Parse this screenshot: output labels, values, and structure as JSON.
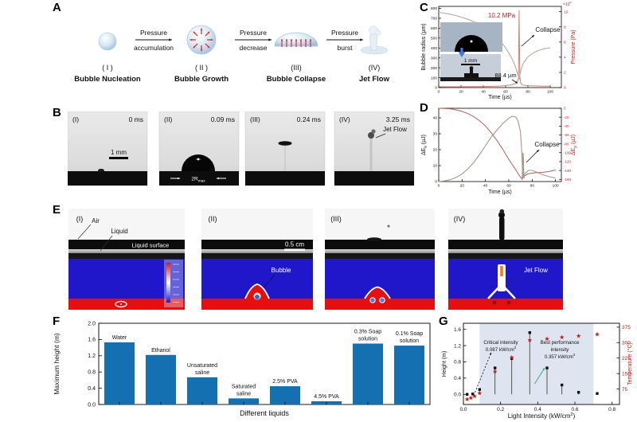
{
  "panel_a": {
    "label": "A",
    "stages": [
      {
        "numeral": "( I )",
        "name": "Bubble Nucleation"
      },
      {
        "numeral": "( II )",
        "name": "Bubble Growth"
      },
      {
        "numeral": "(III)",
        "name": "Bubble Collapse"
      },
      {
        "numeral": "(IV)",
        "name": "Jet Flow"
      }
    ],
    "transitions": [
      {
        "line1": "Pressure",
        "line2": "accumulation"
      },
      {
        "line1": "Pressure",
        "line2": "decrease"
      },
      {
        "line1": "Pressure",
        "line2": "burst"
      }
    ]
  },
  "panel_b": {
    "label": "B",
    "frames": [
      {
        "numeral": "(I)",
        "time": "0 ms",
        "scale_bar": "1 mm"
      },
      {
        "numeral": "(II)",
        "time": "0.09 ms",
        "diameter_label": "2R_max"
      },
      {
        "numeral": "(III)",
        "time": "0.24 ms"
      },
      {
        "numeral": "(IV)",
        "time": "3.25 ms",
        "jet_label": "Jet Flow"
      }
    ]
  },
  "panel_e": {
    "label": "E",
    "frames": [
      {
        "numeral": "(I)",
        "air_label": "Air",
        "liquid_label": "Liquid",
        "surface_label": "Liquid surface"
      },
      {
        "numeral": "(II)",
        "scale_bar": "0.5 cm",
        "bubble_label": "Bubble"
      },
      {
        "numeral": "(III)"
      },
      {
        "numeral": "(IV)",
        "jet_label": "Jet Flow"
      }
    ]
  },
  "chart_data": [
    {
      "id": "C",
      "panel_label": "C",
      "type": "line",
      "xlabel": "Time (µs)",
      "ylabel": "Bubble radius (µm)",
      "y2label": "Pressure (Pa)",
      "y2_scale_note": "×10^6",
      "xlim": [
        0,
        110
      ],
      "ylim": [
        0,
        820
      ],
      "y2lim": [
        0,
        10.7
      ],
      "xticks": [
        0,
        20,
        40,
        60,
        80,
        100
      ],
      "yticks": [
        0,
        100,
        200,
        300,
        400,
        500,
        600,
        700,
        800
      ],
      "y2ticks": [
        0,
        2,
        4,
        6,
        8,
        10
      ],
      "annotations": {
        "peak_pressure": "10.2 MPa",
        "collapse": "Collapse",
        "min_radius": "88.4 µm",
        "inset_scale": "1 mm"
      },
      "series": [
        {
          "name": "bubble radius",
          "axis": "left",
          "color": "#b3aba0",
          "points": [
            [
              0,
              760
            ],
            [
              5,
              752
            ],
            [
              10,
              741
            ],
            [
              15,
              728
            ],
            [
              20,
              712
            ],
            [
              25,
              694
            ],
            [
              30,
              672
            ],
            [
              35,
              646
            ],
            [
              40,
              615
            ],
            [
              45,
              578
            ],
            [
              50,
              532
            ],
            [
              55,
              474
            ],
            [
              60,
              400
            ],
            [
              64,
              330
            ],
            [
              67,
              262
            ],
            [
              69,
              205
            ],
            [
              70.5,
              150
            ],
            [
              71.8,
              95
            ],
            [
              72.2,
              88.4
            ],
            [
              72.8,
              130
            ],
            [
              74,
              190
            ],
            [
              76,
              248
            ],
            [
              80,
              310
            ],
            [
              85,
              352
            ],
            [
              90,
              378
            ],
            [
              95,
              393
            ],
            [
              100,
              402
            ]
          ]
        },
        {
          "name": "pressure",
          "axis": "right",
          "color": "#d08273",
          "points": [
            [
              0,
              0.1
            ],
            [
              20,
              0.12
            ],
            [
              40,
              0.15
            ],
            [
              55,
              0.2
            ],
            [
              65,
              0.35
            ],
            [
              70,
              0.6
            ],
            [
              71.5,
              1.2
            ],
            [
              72.1,
              10.2
            ],
            [
              72.7,
              1.5
            ],
            [
              73.5,
              0.6
            ],
            [
              75,
              0.35
            ],
            [
              80,
              0.25
            ],
            [
              90,
              0.2
            ],
            [
              100,
              0.18
            ]
          ]
        }
      ]
    },
    {
      "id": "D",
      "panel_label": "D",
      "type": "line",
      "xlabel": "Time (µs)",
      "ylabel": "ΔE_k (µJ)",
      "y2label": "ΔE_p (µJ)",
      "xlim": [
        0,
        105
      ],
      "ylim": [
        0,
        46
      ],
      "y2lim": [
        -165,
        0
      ],
      "xticks": [
        0,
        20,
        40,
        60,
        80,
        100
      ],
      "yticks": [
        0,
        10,
        20,
        30,
        40
      ],
      "y2ticks": [
        0,
        -20,
        -40,
        -60,
        -80,
        -100,
        -120,
        -140,
        -160
      ],
      "annotations": {
        "collapse": "Collapse"
      },
      "series": [
        {
          "name": "kinetic energy ΔE_k",
          "axis": "left",
          "color": "#a39a8e",
          "points": [
            [
              0,
              0
            ],
            [
              5,
              0.4
            ],
            [
              10,
              1.2
            ],
            [
              15,
              2.6
            ],
            [
              20,
              4.8
            ],
            [
              25,
              8
            ],
            [
              30,
              12
            ],
            [
              35,
              17
            ],
            [
              40,
              22.5
            ],
            [
              45,
              28
            ],
            [
              50,
              32.5
            ],
            [
              55,
              36.5
            ],
            [
              60,
              39.8
            ],
            [
              63,
              41
            ],
            [
              66,
              40.5
            ],
            [
              68,
              38
            ],
            [
              70,
              31
            ],
            [
              71,
              20
            ],
            [
              72,
              2
            ],
            [
              72.4,
              16
            ],
            [
              72.8,
              2
            ],
            [
              74,
              5
            ],
            [
              77,
              7
            ],
            [
              80,
              7
            ],
            [
              85,
              5.5
            ],
            [
              90,
              4
            ],
            [
              95,
              3
            ],
            [
              100,
              2.2
            ]
          ]
        },
        {
          "name": "potential energy ΔE_p",
          "axis": "right",
          "color": "#b0635a",
          "points": [
            [
              0,
              0
            ],
            [
              5,
              -0.5
            ],
            [
              10,
              -1.5
            ],
            [
              15,
              -3.5
            ],
            [
              20,
              -7
            ],
            [
              25,
              -12
            ],
            [
              30,
              -19
            ],
            [
              35,
              -28
            ],
            [
              40,
              -40
            ],
            [
              45,
              -55
            ],
            [
              50,
              -73
            ],
            [
              55,
              -93
            ],
            [
              60,
              -115
            ],
            [
              63,
              -127
            ],
            [
              66,
              -139
            ],
            [
              68,
              -147
            ],
            [
              70,
              -155
            ],
            [
              71.5,
              -160
            ],
            [
              72.2,
              -100
            ],
            [
              72.8,
              -150
            ],
            [
              74,
              -152
            ],
            [
              76,
              -148
            ],
            [
              80,
              -146
            ],
            [
              85,
              -145
            ],
            [
              90,
              -144
            ],
            [
              95,
              -142
            ],
            [
              100,
              -139
            ]
          ]
        }
      ]
    },
    {
      "id": "F",
      "panel_label": "F",
      "type": "bar",
      "xlabel": "Different liquids",
      "ylabel": "Maximum height (m)",
      "ylim": [
        0,
        2.0
      ],
      "yticks": [
        0.0,
        0.4,
        0.8,
        1.2,
        1.6,
        2.0
      ],
      "bar_color": "#1470b0",
      "categories": [
        "Water",
        "Ethanol",
        "Unsaturated saline",
        "Saturated saline",
        "2.5% PVA",
        "4.5% PVA",
        "0.3% Soap solution",
        "0.1% Soap solution"
      ],
      "values": [
        1.53,
        1.22,
        0.67,
        0.15,
        0.45,
        0.08,
        1.5,
        1.45
      ],
      "label_lines": [
        [
          "Water"
        ],
        [
          "Ethanol"
        ],
        [
          "Unsaturated",
          "saline"
        ],
        [
          "Saturated",
          "saline"
        ],
        [
          "2.5% PVA"
        ],
        [
          "4.5% PVA"
        ],
        [
          "0.3% Soap",
          "solution"
        ],
        [
          "0.1% Soap",
          "solution"
        ]
      ]
    },
    {
      "id": "G",
      "panel_label": "G",
      "type": "scatter",
      "xlabel": "Light Intensity (kW/cm^2)",
      "ylabel": "Height (m)",
      "y2label": "Temperature (°C)",
      "xlim": [
        0,
        0.84
      ],
      "ylim": [
        -0.25,
        1.75
      ],
      "y2lim": [
        0,
        393.75
      ],
      "xticks": [
        0.0,
        0.2,
        0.4,
        0.6,
        0.8
      ],
      "yticks": [
        0.0,
        0.4,
        0.8,
        1.2,
        1.6
      ],
      "y2ticks": [
        75,
        150,
        225,
        300,
        375
      ],
      "shaded_region": {
        "from": 0.087,
        "to": 0.7,
        "color": "#dfe5f0"
      },
      "series": [
        {
          "name": "height",
          "marker": "square",
          "color": "#111111",
          "axis": "left",
          "points": [
            [
              0.02,
              0
            ],
            [
              0.05,
              0.01
            ],
            [
              0.087,
              0.12
            ],
            [
              0.17,
              0.65
            ],
            [
              0.26,
              0.88
            ],
            [
              0.357,
              1.52
            ],
            [
              0.45,
              0.65
            ],
            [
              0.53,
              0.23
            ],
            [
              0.62,
              0.05
            ],
            [
              0.72,
              0.02
            ]
          ]
        },
        {
          "name": "temperature",
          "marker": "star",
          "color": "#c92121",
          "axis": "right",
          "points": [
            [
              0.02,
              25
            ],
            [
              0.04,
              32
            ],
            [
              0.06,
              40
            ],
            [
              0.087,
              55
            ],
            [
              0.17,
              160
            ],
            [
              0.26,
              228
            ],
            [
              0.357,
              312
            ],
            [
              0.45,
              318
            ],
            [
              0.53,
              326
            ],
            [
              0.62,
              332
            ],
            [
              0.72,
              340
            ]
          ]
        }
      ],
      "annotations": {
        "critical": [
          "Critical intensity",
          "0.087 kW/cm^2"
        ],
        "best": [
          "Best performance",
          "intensity",
          "0.357 kW/cm^2"
        ]
      }
    }
  ]
}
